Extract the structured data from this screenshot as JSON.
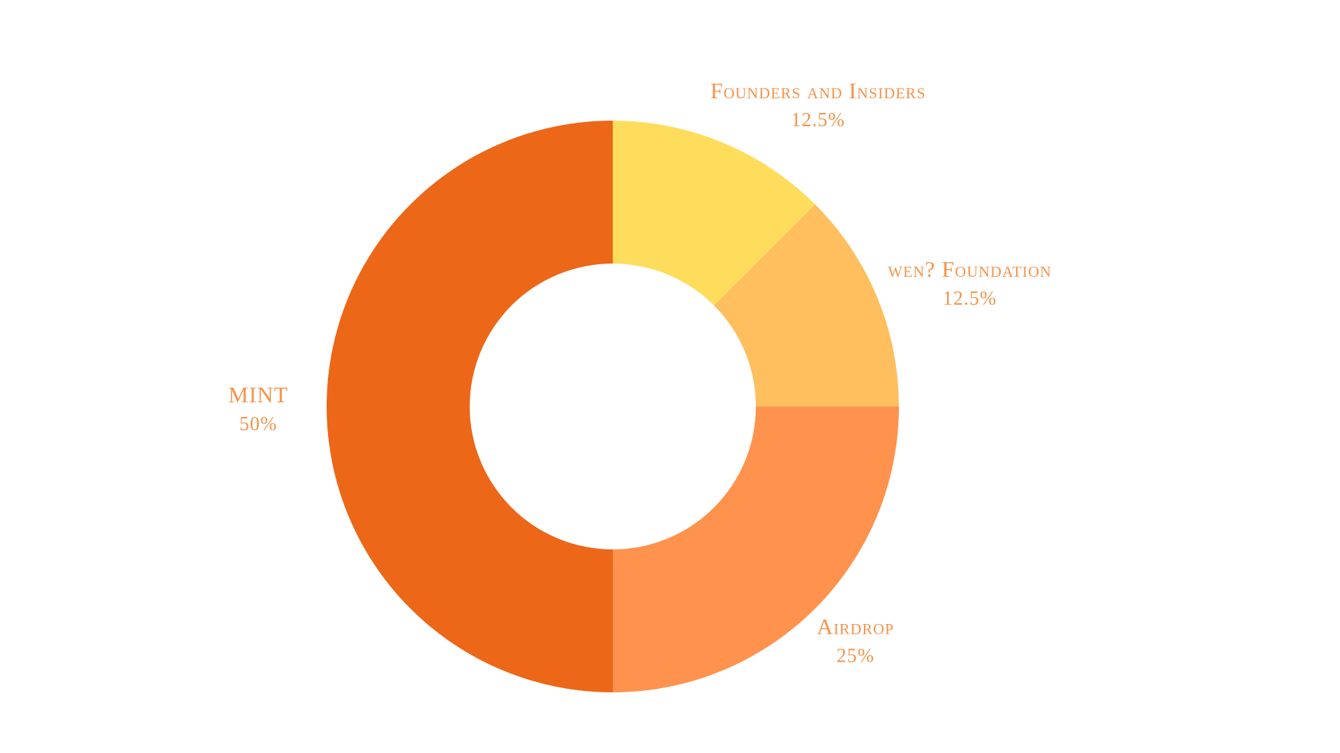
{
  "chart_data": {
    "type": "pie",
    "variant": "donut",
    "title": "",
    "slices": [
      {
        "label": "Founders and Insiders",
        "value": 12.5,
        "value_label": "12.5%",
        "color": "#FFDD5C"
      },
      {
        "label": "wen? Foundation",
        "value": 12.5,
        "value_label": "12.5%",
        "color": "#FFBF5E"
      },
      {
        "label": "Airdrop",
        "value": 25,
        "value_label": "25%",
        "color": "#FF924D"
      },
      {
        "label": "MINT",
        "value": 50,
        "value_label": "50%",
        "color": "#EC6718"
      }
    ],
    "label_color": "#F6934A",
    "background": "#FFFFFF",
    "legend": "none"
  }
}
